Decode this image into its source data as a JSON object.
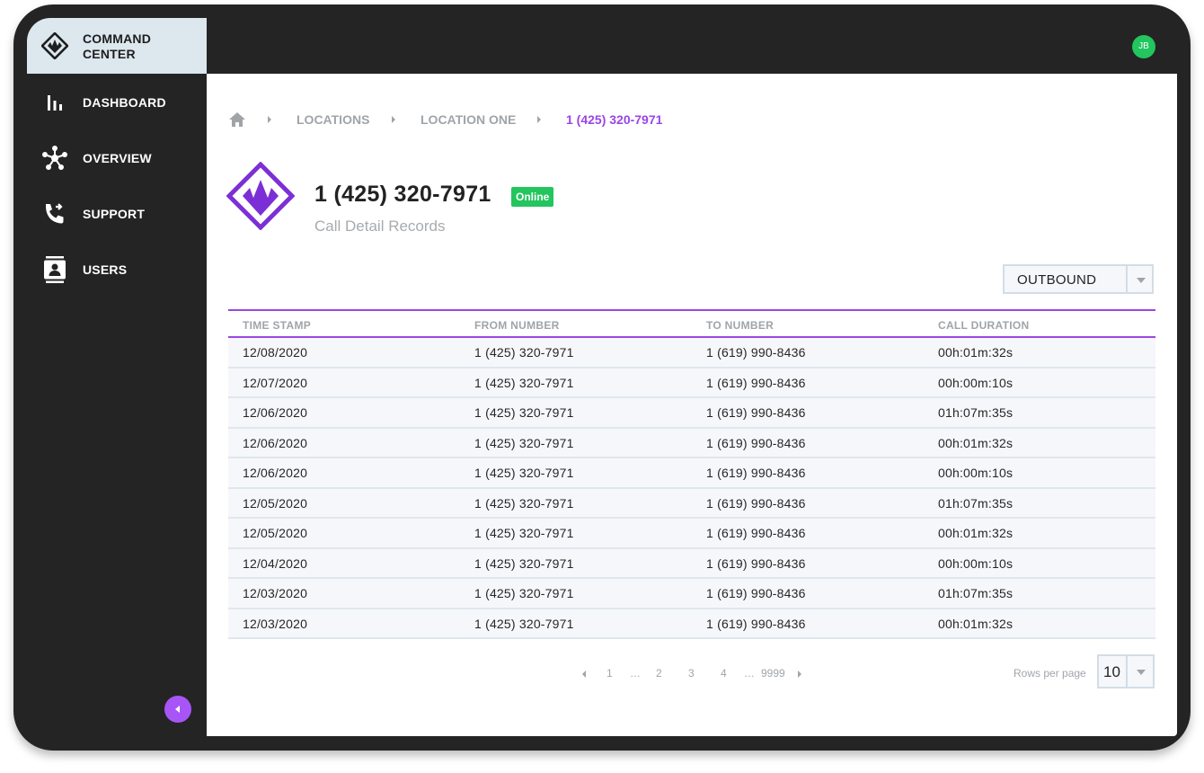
{
  "brand": {
    "line1": "COMMAND",
    "line2": "CENTER",
    "color": "#7c2fd6"
  },
  "user": {
    "initials": "JB"
  },
  "sidebar": {
    "items": [
      {
        "label": "DASHBOARD",
        "icon": "bar-chart-icon"
      },
      {
        "label": "OVERVIEW",
        "icon": "network-icon"
      },
      {
        "label": "SUPPORT",
        "icon": "phone-forward-icon"
      },
      {
        "label": "USERS",
        "icon": "contact-card-icon"
      }
    ]
  },
  "breadcrumb": {
    "items": [
      "LOCATIONS",
      "LOCATION ONE",
      "1 (425) 320-7971"
    ]
  },
  "header": {
    "title": "1 (425) 320-7971",
    "status": "Online",
    "subtitle": "Call Detail Records"
  },
  "filter": {
    "direction": "OUTBOUND"
  },
  "table": {
    "columns": [
      "TIME STAMP",
      "FROM NUMBER",
      "TO NUMBER",
      "CALL DURATION"
    ],
    "rows": [
      [
        "12/08/2020",
        "1 (425) 320-7971",
        "1 (619) 990-8436",
        "00h:01m:32s"
      ],
      [
        "12/07/2020",
        "1 (425) 320-7971",
        "1 (619) 990-8436",
        "00h:00m:10s"
      ],
      [
        "12/06/2020",
        "1 (425) 320-7971",
        "1 (619) 990-8436",
        "01h:07m:35s"
      ],
      [
        "12/06/2020",
        "1 (425) 320-7971",
        "1 (619) 990-8436",
        "00h:01m:32s"
      ],
      [
        "12/06/2020",
        "1 (425) 320-7971",
        "1 (619) 990-8436",
        "00h:00m:10s"
      ],
      [
        "12/05/2020",
        "1 (425) 320-7971",
        "1 (619) 990-8436",
        "01h:07m:35s"
      ],
      [
        "12/05/2020",
        "1 (425) 320-7971",
        "1 (619) 990-8436",
        "00h:01m:32s"
      ],
      [
        "12/04/2020",
        "1 (425) 320-7971",
        "1 (619) 990-8436",
        "00h:00m:10s"
      ],
      [
        "12/03/2020",
        "1 (425) 320-7971",
        "1 (619) 990-8436",
        "01h:07m:35s"
      ],
      [
        "12/03/2020",
        "1 (425) 320-7971",
        "1 (619) 990-8436",
        "00h:01m:32s"
      ]
    ]
  },
  "pagination": {
    "pages": [
      "1",
      "…",
      "2",
      "3",
      "4",
      "…",
      "9999"
    ],
    "rows_per_page_label": "Rows per page",
    "rows_per_page": "10"
  },
  "colors": {
    "accent": "#9b45e4",
    "online": "#22c55e",
    "sidebar": "#242424"
  }
}
